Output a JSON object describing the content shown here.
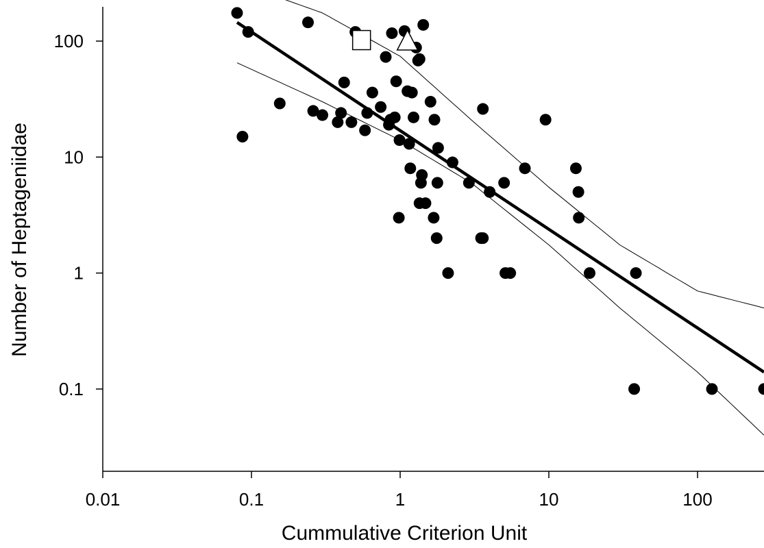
{
  "chart_data": {
    "type": "scatter",
    "title": "",
    "xlabel": "Cummulative Criterion Unit",
    "ylabel": "Number of Heptageniidae",
    "x_scale": "log",
    "y_scale": "log",
    "xlim": [
      0.01,
      300
    ],
    "ylim": [
      0.02,
      200
    ],
    "x_tick_values": [
      0.01,
      0.1,
      1,
      10,
      100
    ],
    "x_tick_labels": [
      "0.01",
      "0.1",
      "1",
      "10",
      "100"
    ],
    "y_tick_values": [
      0.1,
      1,
      10,
      100
    ],
    "y_tick_labels": [
      "0.1",
      "1",
      "10",
      "100"
    ],
    "grid": false,
    "legend": "none",
    "series": [
      {
        "marker": "filled-circle",
        "points": [
          [
            0.08,
            175
          ],
          [
            0.095,
            120
          ],
          [
            0.087,
            15
          ],
          [
            0.155,
            29
          ],
          [
            0.24,
            145
          ],
          [
            0.26,
            25
          ],
          [
            0.3,
            23
          ],
          [
            0.38,
            20
          ],
          [
            0.4,
            24
          ],
          [
            0.42,
            44
          ],
          [
            0.47,
            20
          ],
          [
            0.5,
            120
          ],
          [
            0.58,
            17
          ],
          [
            0.6,
            24
          ],
          [
            0.65,
            36
          ],
          [
            0.74,
            27
          ],
          [
            0.8,
            73
          ],
          [
            0.84,
            19
          ],
          [
            0.86,
            21
          ],
          [
            0.88,
            117
          ],
          [
            0.92,
            22
          ],
          [
            0.94,
            45
          ],
          [
            0.98,
            3
          ],
          [
            0.99,
            14
          ],
          [
            1.07,
            122
          ],
          [
            1.12,
            37
          ],
          [
            1.15,
            13
          ],
          [
            1.17,
            8
          ],
          [
            1.2,
            36
          ],
          [
            1.23,
            22
          ],
          [
            1.28,
            88
          ],
          [
            1.32,
            68
          ],
          [
            1.35,
            70
          ],
          [
            1.35,
            4
          ],
          [
            1.38,
            6
          ],
          [
            1.4,
            7
          ],
          [
            1.43,
            138
          ],
          [
            1.48,
            4
          ],
          [
            1.6,
            30
          ],
          [
            1.68,
            3
          ],
          [
            1.7,
            21
          ],
          [
            1.76,
            2
          ],
          [
            1.78,
            6
          ],
          [
            1.8,
            12
          ],
          [
            2.1,
            1
          ],
          [
            2.25,
            9
          ],
          [
            2.9,
            6
          ],
          [
            3.5,
            2
          ],
          [
            3.6,
            2
          ],
          [
            3.6,
            26
          ],
          [
            4.0,
            5
          ],
          [
            5.0,
            6
          ],
          [
            5.1,
            1
          ],
          [
            5.5,
            1
          ],
          [
            6.9,
            8
          ],
          [
            9.5,
            21
          ],
          [
            15.2,
            8
          ],
          [
            15.8,
            5
          ],
          [
            15.9,
            3
          ],
          [
            18.8,
            1
          ],
          [
            37.5,
            0.1
          ],
          [
            38.5,
            1
          ],
          [
            125,
            0.1
          ],
          [
            280,
            0.1
          ]
        ]
      },
      {
        "marker": "open-square",
        "points": [
          [
            0.55,
            102
          ]
        ]
      },
      {
        "marker": "open-triangle",
        "points": [
          [
            1.12,
            100
          ]
        ]
      }
    ],
    "regression": {
      "fit": [
        [
          0.08,
          145
        ],
        [
          280,
          0.14
        ]
      ],
      "upper_ci": [
        [
          0.08,
          320
        ],
        [
          0.3,
          175
        ],
        [
          1.0,
          74
        ],
        [
          3.0,
          21
        ],
        [
          10.0,
          5.5
        ],
        [
          30.0,
          1.75
        ],
        [
          100,
          0.7
        ],
        [
          280,
          0.5
        ]
      ],
      "lower_ci": [
        [
          0.08,
          65
        ],
        [
          0.3,
          30
        ],
        [
          1.0,
          14
        ],
        [
          3.0,
          6
        ],
        [
          10.0,
          1.75
        ],
        [
          30.0,
          0.5
        ],
        [
          100,
          0.14
        ],
        [
          280,
          0.04
        ]
      ]
    },
    "styles": {
      "marker_color": "#000000",
      "fit_color": "#000000",
      "ci_color": "#000000",
      "open_fill": "#ffffff"
    }
  }
}
